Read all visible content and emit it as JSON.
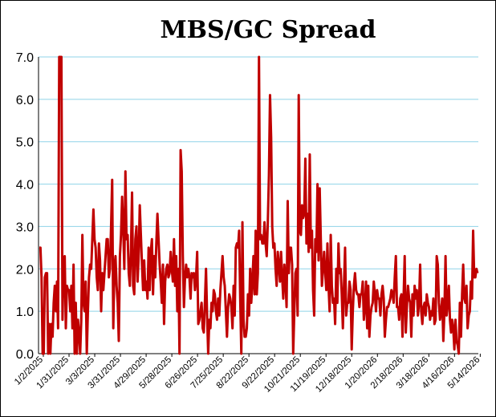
{
  "chart_data": {
    "type": "line",
    "title": "MBS/GC Spread",
    "xlabel": "",
    "ylabel": "",
    "ylim": [
      0,
      7
    ],
    "y_ticks": [
      "0.0",
      "1.0",
      "2.0",
      "3.0",
      "4.0",
      "5.0",
      "6.0",
      "7.0"
    ],
    "x_ticks": [
      "1/2/2025",
      "1/31/2025",
      "3/3/2025",
      "3/31/2025",
      "4/29/2025",
      "5/28/2025",
      "6/26/2025",
      "7/25/2025",
      "8/22/2025",
      "9/22/2025",
      "10/21/2025",
      "11/19/2025",
      "12/18/2025",
      "1/20/2026",
      "2/18/2026",
      "3/18/2026",
      "4/16/2026",
      "5/14/2026"
    ],
    "grid": true,
    "line_color": "#c00000",
    "grid_color": "#8fd3e8",
    "series": [
      {
        "name": "",
        "values": [
          2.5,
          2.5,
          1.8,
          0.0,
          0.0,
          1.8,
          1.9,
          1.9,
          0.0,
          0.7,
          0.0,
          0.7,
          0.4,
          1.2,
          1.6,
          1.0,
          1.7,
          0.6,
          7.0,
          7.0,
          7.0,
          0.8,
          2.2,
          2.3,
          0.6,
          1.6,
          1.5,
          1.5,
          1.0,
          1.6,
          0.6,
          2.1,
          0.0,
          1.2,
          0.0,
          0.8,
          0.5,
          0.0,
          0.8,
          2.8,
          1.2,
          1.0,
          1.7,
          0.0,
          1.0,
          1.8,
          2.1,
          2.0,
          2.7,
          3.4,
          2.7,
          2.5,
          1.8,
          1.5,
          2.6,
          2.2,
          1.0,
          1.9,
          1.5,
          1.9,
          2.3,
          2.7,
          2.7,
          1.8,
          2.0,
          3.0,
          4.1,
          0.6,
          2.0,
          2.3,
          1.6,
          1.2,
          0.3,
          2.3,
          2.8,
          3.7,
          3.0,
          2.0,
          4.3,
          2.7,
          2.8,
          1.9,
          1.6,
          2.4,
          3.8,
          1.6,
          1.4,
          2.7,
          3.0,
          1.7,
          2.3,
          3.5,
          2.8,
          2.1,
          1.5,
          2.2,
          1.5,
          1.7,
          1.3,
          2.5,
          1.5,
          2.4,
          2.7,
          1.4,
          2.3,
          1.8,
          2.6,
          3.3,
          2.7,
          2.1,
          1.7,
          1.2,
          2.1,
          0.7,
          1.7,
          2.0,
          2.1,
          1.8,
          1.9,
          2.4,
          2.0,
          1.7,
          2.7,
          1.6,
          2.3,
          1.0,
          2.0,
          0.0,
          4.8,
          4.3,
          2.3,
          1.1,
          1.8,
          2.1,
          1.8,
          2.0,
          1.8,
          1.3,
          1.9,
          1.8,
          1.9,
          1.5,
          1.8,
          2.4,
          0.7,
          0.8,
          1.0,
          1.2,
          0.6,
          0.5,
          1.2,
          2.0,
          0.9,
          0.0,
          0.8,
          0.6,
          1.2,
          1.0,
          1.5,
          1.4,
          1.0,
          0.8,
          1.3,
          0.9,
          1.5,
          1.9,
          2.3,
          1.8,
          1.6,
          1.0,
          0.4,
          1.1,
          1.4,
          1.3,
          1.1,
          0.6,
          1.6,
          0.9,
          2.5,
          2.6,
          2.5,
          2.9,
          1.3,
          0.0,
          3.1,
          0.8,
          0.4,
          0.4,
          0.6,
          1.4,
          0.9,
          2.0,
          1.2,
          1.7,
          2.3,
          1.4,
          2.9,
          1.4,
          1.9,
          7.0,
          2.7,
          2.8,
          2.6,
          2.6,
          3.1,
          2.6,
          2.3,
          3.1,
          4.2,
          6.1,
          5.1,
          3.0,
          2.5,
          2.6,
          2.0,
          1.6,
          2.4,
          2.1,
          1.7,
          2.4,
          1.8,
          1.3,
          2.1,
          1.7,
          1.1,
          3.6,
          1.9,
          2.5,
          2.5,
          2.1,
          0.0,
          1.0,
          1.9,
          2.0,
          0.9,
          6.1,
          2.9,
          2.8,
          3.5,
          3.2,
          3.3,
          4.6,
          2.6,
          3.3,
          2.4,
          4.7,
          2.5,
          2.9,
          1.5,
          0.9,
          2.7,
          2.4,
          4.0,
          2.2,
          3.9,
          2.7,
          1.6,
          2.0,
          2.4,
          1.9,
          1.5,
          2.6,
          1.6,
          1.0,
          2.8,
          1.6,
          1.2,
          1.3,
          0.7,
          2.0,
          1.2,
          2.6,
          1.9,
          2.0,
          1.4,
          0.6,
          1.6,
          2.5,
          0.9,
          1.2,
          1.2,
          1.7,
          1.5,
          0.1,
          1.0,
          1.6,
          1.9,
          1.5,
          1.4,
          1.4,
          1.1,
          1.4,
          1.4,
          1.7,
          0.8,
          1.1,
          1.7,
          0.6,
          1.6,
          0.4,
          0.9,
          1.1,
          1.2,
          1.7,
          1.4,
          1.0,
          1.5,
          1.3,
          1.3,
          0.9,
          1.4,
          1.6,
          1.3,
          0.4,
          0.8,
          1.1,
          1.1,
          1.2,
          1.3,
          1.5,
          1.4,
          1.2,
          1.8,
          2.3,
          1.1,
          1.1,
          0.8,
          1.3,
          1.4,
          0.4,
          1.3,
          2.3,
          0.5,
          1.1,
          1.6,
          1.3,
          1.2,
          0.4,
          1.4,
          0.9,
          1.6,
          1.3,
          1.5,
          0.9,
          1.2,
          2.1,
          1.0,
          0.7,
          1.1,
          1.2,
          0.9,
          1.4,
          1.2,
          1.1,
          0.8,
          1.0,
          0.9,
          1.3,
          0.7,
          0.8,
          2.3,
          2.1,
          1.2,
          0.8,
          1.0,
          1.3,
          0.3,
          1.0,
          2.3,
          0.9,
          1.2,
          1.6,
          0.8,
          0.5,
          0.8,
          0.6,
          0.1,
          0.8,
          0.3,
          0.2,
          0.0,
          1.2,
          0.4,
          1.4,
          2.1,
          1.3,
          1.2,
          1.6,
          0.6,
          0.9,
          1.0,
          1.7,
          1.3,
          2.9,
          1.8,
          1.8,
          2.0,
          1.9
        ]
      }
    ]
  }
}
